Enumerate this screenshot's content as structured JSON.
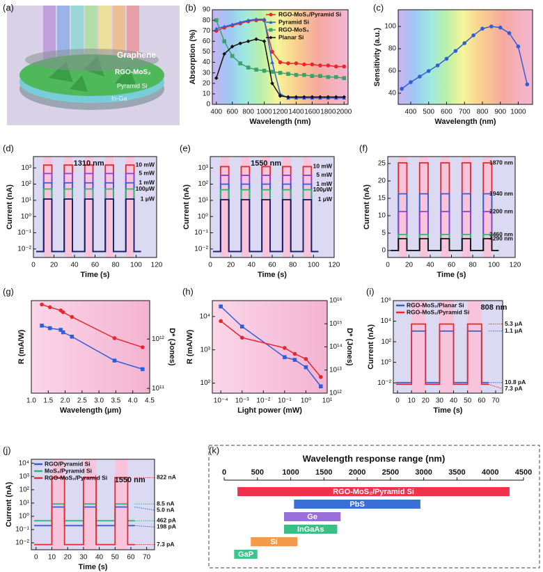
{
  "illustration": {
    "label": "(a)",
    "layers": [
      "Graphene",
      "RGO-MoS₂",
      "Pyramid Si",
      "In-Ga"
    ]
  },
  "chart_data": [
    {
      "label": "(b)",
      "type": "line",
      "xlabel": "Wavelength (nm)",
      "ylabel": "Absorption (%)",
      "background": "spectrum",
      "legend": "upper right",
      "xlim": [
        350,
        2050
      ],
      "ylim": [
        0,
        90
      ],
      "xticks": [
        400,
        600,
        800,
        1000,
        1200,
        1400,
        1600,
        1800,
        2000
      ],
      "yticks": [
        0,
        10,
        20,
        30,
        40,
        50,
        60,
        70,
        80,
        90
      ],
      "x": [
        400,
        500,
        600,
        700,
        800,
        900,
        1000,
        1100,
        1200,
        1300,
        1400,
        1500,
        1600,
        1700,
        1800,
        1900,
        2000
      ],
      "series": [
        {
          "name": "RGO-MoS₂/Pyramid Si",
          "color": "#e8262b",
          "marker": "circle",
          "values": [
            70,
            73,
            75,
            77,
            79,
            80,
            80,
            50,
            40,
            39,
            39,
            38,
            38,
            37,
            37,
            36,
            36
          ]
        },
        {
          "name": "Pyramid Si",
          "color": "#2f5fd8",
          "marker": "triangle",
          "values": [
            72,
            74,
            76,
            78,
            80,
            81,
            81,
            40,
            10,
            6,
            6,
            6,
            6,
            6,
            6,
            6,
            6
          ]
        },
        {
          "name": "RGO-MoS₂",
          "color": "#3aa36a",
          "marker": "square",
          "values": [
            80,
            60,
            46,
            39,
            35,
            33,
            32,
            31,
            30,
            29,
            28,
            28,
            27,
            27,
            26,
            26,
            25
          ]
        },
        {
          "name": "Planar Si",
          "color": "#111111",
          "marker": "diamond",
          "values": [
            25,
            48,
            55,
            58,
            60,
            62,
            60,
            20,
            8,
            7,
            7,
            7,
            7,
            7,
            7,
            7,
            7
          ]
        }
      ]
    },
    {
      "label": "(c)",
      "type": "line",
      "xlabel": "Wavelength (nm)",
      "ylabel": "Sensitivity (a.u.)",
      "background": "spectrum",
      "xlim": [
        330,
        1080
      ],
      "ylim": [
        30,
        115
      ],
      "xticks": [
        400,
        500,
        600,
        700,
        800,
        900,
        1000
      ],
      "yticks": [
        40,
        60,
        80,
        100
      ],
      "x": [
        350,
        400,
        450,
        500,
        550,
        600,
        650,
        700,
        750,
        800,
        850,
        900,
        950,
        1000,
        1050
      ],
      "series": [
        {
          "color": "#2f5fd8",
          "marker": "circle",
          "values": [
            44,
            50,
            55,
            60,
            65,
            71,
            78,
            85,
            92,
            98,
            100,
            99,
            94,
            82,
            48
          ]
        }
      ]
    },
    {
      "label": "(d)",
      "type": "pulse",
      "xlabel": "Time (s)",
      "ylabel": "Current (nA)",
      "annotation": "1310 nm",
      "ylog": true,
      "xlim": [
        0,
        120
      ],
      "ylim": [
        0.003,
        5000
      ],
      "xticks": [
        0,
        20,
        40,
        60,
        80,
        100,
        120
      ],
      "yticks": [
        {
          "value": 0.01,
          "label": "10⁻²"
        },
        {
          "value": 0.1,
          "label": "10⁻¹"
        },
        {
          "value": 1,
          "label": "10⁰"
        },
        {
          "value": 10,
          "label": "10¹"
        },
        {
          "value": 100,
          "label": "10²"
        },
        {
          "value": 1000,
          "label": "10³"
        }
      ],
      "on_intervals": [
        [
          10,
          18
        ],
        [
          30,
          38
        ],
        [
          50,
          58
        ],
        [
          70,
          78
        ],
        [
          90,
          98
        ]
      ],
      "dark": 0.007,
      "series": [
        {
          "name": "10 mW",
          "color": "#e8262b",
          "value": 1500
        },
        {
          "name": "5 mW",
          "color": "#8a3fd8",
          "value": 450
        },
        {
          "name": "1 mW",
          "color": "#2f5fd8",
          "value": 120
        },
        {
          "name": "100μW",
          "color": "#2bb673",
          "value": 50
        },
        {
          "name": "1 μW",
          "color": "#1a1a66",
          "value": 12
        }
      ]
    },
    {
      "label": "(e)",
      "type": "pulse",
      "xlabel": "Time (s)",
      "ylabel": "Current (nA)",
      "annotation": "1550 nm",
      "ylog": true,
      "xlim": [
        0,
        120
      ],
      "ylim": [
        0.003,
        5000
      ],
      "xticks": [
        0,
        20,
        40,
        60,
        80,
        100,
        120
      ],
      "yticks": [
        {
          "value": 0.01,
          "label": "10⁻²"
        },
        {
          "value": 0.1,
          "label": "10⁻¹"
        },
        {
          "value": 1,
          "label": "10⁰"
        },
        {
          "value": 10,
          "label": "10¹"
        },
        {
          "value": 100,
          "label": "10²"
        },
        {
          "value": 1000,
          "label": "10³"
        }
      ],
      "on_intervals": [
        [
          10,
          18
        ],
        [
          30,
          38
        ],
        [
          50,
          58
        ],
        [
          70,
          78
        ],
        [
          90,
          98
        ]
      ],
      "dark": 0.007,
      "series": [
        {
          "name": "10 mW",
          "color": "#e8262b",
          "value": 1200
        },
        {
          "name": "5 mW",
          "color": "#8a3fd8",
          "value": 350
        },
        {
          "name": "1 mW",
          "color": "#2f5fd8",
          "value": 100
        },
        {
          "name": "100μW",
          "color": "#2bb673",
          "value": 45
        },
        {
          "name": "1 μW",
          "color": "#1a1a66",
          "value": 11
        }
      ]
    },
    {
      "label": "(f)",
      "type": "pulse",
      "xlabel": "Time (s)",
      "ylabel": "Current (nA)",
      "xlim": [
        0,
        120
      ],
      "ylim": [
        -2,
        27
      ],
      "xticks": [
        0,
        20,
        40,
        60,
        80,
        100,
        120
      ],
      "yticks": [
        0,
        5,
        10,
        15,
        20,
        25
      ],
      "on_intervals": [
        [
          10,
          18
        ],
        [
          30,
          38
        ],
        [
          50,
          58
        ],
        [
          70,
          78
        ],
        [
          90,
          98
        ]
      ],
      "dark": 0,
      "series": [
        {
          "name": "1870 nm",
          "color": "#e8262b",
          "value": 25.2
        },
        {
          "name": "1940 nm",
          "color": "#2f5fd8",
          "value": 16.3
        },
        {
          "name": "2200 nm",
          "color": "#8a3fd8",
          "value": 11.2
        },
        {
          "name": "3460 nm",
          "color": "#2bb673",
          "value": 4.6
        },
        {
          "name": "4290 nm",
          "color": "#111111",
          "value": 3.4
        }
      ]
    },
    {
      "label": "(g)",
      "type": "dual",
      "xlabel": "Wavelength (μm)",
      "ylabel": "R (mA/W)",
      "y2label": "D* (Jones)",
      "background": "pink",
      "xlim": [
        1,
        4.5
      ],
      "xticks": [
        {
          "value": 1,
          "label": "1.0"
        },
        1.5,
        {
          "value": 2,
          "label": "2.0"
        },
        2.5,
        {
          "value": 3,
          "label": "3.0"
        },
        3.5,
        {
          "value": 4,
          "label": "4.0"
        },
        4.5
      ],
      "ylog": true,
      "ylim": [
        1,
        1000
      ],
      "y2log": true,
      "y2lim": [
        80000000000.0,
        6000000000000.0
      ],
      "y2ticks": [
        {
          "value": 100000000000.0,
          "label": "10¹¹"
        },
        {
          "value": 1000000000000.0,
          "label": "10¹²"
        }
      ],
      "x": [
        1.31,
        1.55,
        1.87,
        1.94,
        2.2,
        3.46,
        4.29
      ],
      "series": [
        {
          "color": "#2f5fd8",
          "marker": "square",
          "values": [
            155,
            128,
            113,
            94,
            68,
            11.4,
            6.0
          ]
        },
        {
          "color": "#e8262b",
          "marker": "circle",
          "axis": "y2",
          "values": [
            5000000000000.0,
            4400000000000.0,
            3800000000000.0,
            3500000000000.0,
            2800000000000.0,
            1040000000000.0,
            680000000000.0
          ]
        }
      ]
    },
    {
      "label": "(h)",
      "type": "dual",
      "xlabel": "Light power (mW)",
      "ylabel": "R (mA/W)",
      "y2label": "D* (Jones)",
      "background": "pink",
      "xlog": true,
      "xlim": [
        4e-05,
        10
      ],
      "xticks": [
        {
          "value": 0.0001,
          "label": "10⁻⁴"
        },
        {
          "value": 0.001,
          "label": "10⁻³"
        },
        {
          "value": 0.01,
          "label": "10⁻²"
        },
        {
          "value": 0.1,
          "label": "10⁻¹"
        },
        {
          "value": 1,
          "label": "10⁰"
        },
        {
          "value": 10,
          "label": "10¹"
        }
      ],
      "ylog": true,
      "ylim": [
        50,
        30000
      ],
      "yticks": [
        {
          "value": 100,
          "label": "10²"
        },
        {
          "value": 1000,
          "label": "10³"
        },
        {
          "value": 10000,
          "label": "10⁴"
        }
      ],
      "y2log": true,
      "y2lim": [
        1000000000000.0,
        1e+16
      ],
      "y2ticks": [
        {
          "value": 1000000000000.0,
          "label": "10¹²"
        },
        {
          "value": 10000000000000.0,
          "label": "10¹³"
        },
        {
          "value": 100000000000000.0,
          "label": "10¹⁴"
        },
        {
          "value": 1000000000000000.0,
          "label": "10¹⁵"
        },
        {
          "value": 1e+16,
          "label": "10¹⁶"
        }
      ],
      "x": [
        0.0001,
        0.001,
        0.1,
        0.3,
        1,
        5
      ],
      "series": [
        {
          "color": "#2f5fd8",
          "marker": "square",
          "values": [
            20000,
            5000,
            600,
            500,
            300,
            80
          ]
        },
        {
          "color": "#e8262b",
          "marker": "circle",
          "axis": "y2",
          "values": [
            1300000000000000.0,
            250000000000000.0,
            90000000000000.0,
            50000000000000.0,
            30000000000000.0,
            5000000000000.0
          ]
        }
      ]
    },
    {
      "label": "(i)",
      "type": "pulse",
      "xlabel": "Time (s)",
      "ylabel": "Current (nA)",
      "annotation": "808 nm",
      "ylog": true,
      "legend": "upper left",
      "xlim": [
        -3,
        75
      ],
      "ylim": [
        0.001,
        1000000
      ],
      "xticks": [
        0,
        10,
        20,
        30,
        40,
        50,
        60,
        70
      ],
      "yticks": [
        {
          "value": 0.01,
          "label": "10⁻²"
        },
        {
          "value": 1,
          "label": "10⁰"
        },
        {
          "value": 100,
          "label": "10²"
        },
        {
          "value": 10000,
          "label": "10⁴"
        },
        {
          "value": 1000000,
          "label": "10⁶"
        }
      ],
      "on_intervals": [
        [
          10,
          20
        ],
        [
          30,
          40
        ],
        [
          50,
          60
        ]
      ],
      "series": [
        {
          "name": "RGO-MoS₂/Planar Si",
          "color": "#2f5fd8",
          "values": [
            1100,
            0.0108
          ],
          "value_labels": [
            "1.1 μA",
            "10.8 pA"
          ]
        },
        {
          "name": "RGO-MoS₂/Pyramid Si",
          "color": "#e8262b",
          "values": [
            5300,
            0.0073
          ],
          "value_labels": [
            "5.3 μA",
            "7.3 pA"
          ]
        }
      ]
    },
    {
      "label": "(j)",
      "type": "pulse",
      "xlabel": "Time (s)",
      "ylabel": "Current (nA)",
      "annotation": "1550 nm",
      "ylog": true,
      "legend": "upper left",
      "xlim": [
        -3,
        75
      ],
      "ylim": [
        0.003,
        20000
      ],
      "xticks": [
        0,
        10,
        20,
        30,
        40,
        50,
        60,
        70
      ],
      "yticks": [
        {
          "value": 0.01,
          "label": "10⁻²"
        },
        {
          "value": 0.1,
          "label": "10⁻¹"
        },
        {
          "value": 1,
          "label": "10⁰"
        },
        {
          "value": 10,
          "label": "10¹"
        },
        {
          "value": 100,
          "label": "10²"
        },
        {
          "value": 1000,
          "label": "10³"
        },
        {
          "value": 10000,
          "label": "10⁴"
        }
      ],
      "on_intervals": [
        [
          10,
          18
        ],
        [
          30,
          38
        ],
        [
          50,
          58
        ]
      ],
      "series": [
        {
          "name": "RGO/Pyramid Si",
          "color": "#2f5fd8",
          "values": [
            5.0,
            0.198
          ],
          "value_labels": [
            "5.0 nA",
            "198 pA"
          ]
        },
        {
          "name": "MoS₂/Pyramid Si",
          "color": "#2bb673",
          "values": [
            8.5,
            0.462
          ],
          "value_labels": [
            "8.5 nA",
            "462 pA"
          ]
        },
        {
          "name": "RGO-MoS₂/Pyramid Si",
          "color": "#e8262b",
          "values": [
            822,
            0.0073
          ],
          "value_labels": [
            "822 nA",
            "7.3 pA"
          ]
        }
      ]
    },
    {
      "label": "(k)",
      "type": "range",
      "title": "Wavelength response range (nm)",
      "xlim": [
        0,
        4500
      ],
      "xticks": [
        0,
        500,
        1000,
        1500,
        2000,
        2500,
        3000,
        3500,
        4000,
        4500
      ],
      "categories": [
        "RGO-MoS₂/Pyramid Si",
        "PbS",
        "Ge",
        "InGaAs",
        "Si",
        "GaP"
      ],
      "starts": [
        200,
        1050,
        900,
        900,
        400,
        150
      ],
      "ends": [
        4290,
        2950,
        1750,
        1700,
        1100,
        500
      ],
      "colors": [
        "#f0324a",
        "#3a6fd8",
        "#9b6fd8",
        "#3bbf84",
        "#f59a4a",
        "#3fc48f"
      ]
    }
  ]
}
